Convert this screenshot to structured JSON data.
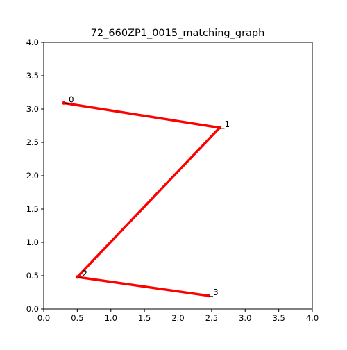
{
  "chart_data": {
    "type": "line",
    "title": "72_660ZP1_0015_matching_graph",
    "xlabel": "",
    "ylabel": "",
    "xlim": [
      0,
      4
    ],
    "ylim": [
      0,
      4
    ],
    "x_ticks": [
      0,
      0.5,
      1,
      1.5,
      2,
      2.5,
      3,
      3.5,
      4
    ],
    "y_ticks": [
      0,
      0.5,
      1,
      1.5,
      2,
      2.5,
      3,
      3.5,
      4
    ],
    "x_tick_labels": [
      "0.0",
      "0.5",
      "1.0",
      "1.5",
      "2.0",
      "2.5",
      "3.0",
      "3.5",
      "4.0"
    ],
    "y_tick_labels": [
      "0.0",
      "0.5",
      "1.0",
      "1.5",
      "2.0",
      "2.5",
      "3.0",
      "3.5",
      "4.0"
    ],
    "grid": false,
    "nodes": [
      {
        "label": "0",
        "x": 0.3,
        "y": 3.09
      },
      {
        "label": "1",
        "x": 2.62,
        "y": 2.72
      },
      {
        "label": "2",
        "x": 0.5,
        "y": 0.48
      },
      {
        "label": "3",
        "x": 2.45,
        "y": 0.2
      }
    ],
    "edges": [
      [
        0,
        1
      ],
      [
        1,
        2
      ],
      [
        2,
        3
      ]
    ],
    "line_color": "#ff0000"
  }
}
